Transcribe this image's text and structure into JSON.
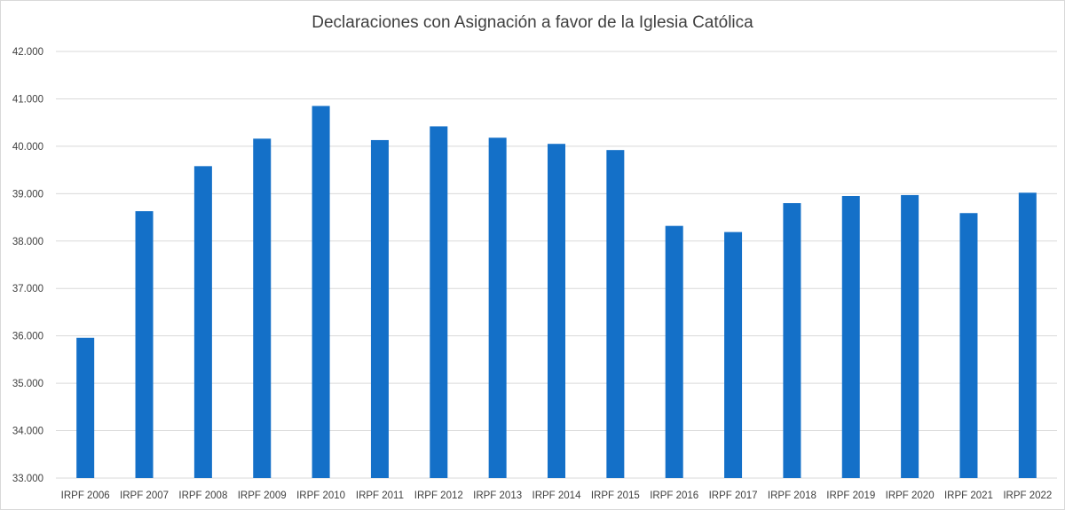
{
  "chart_data": {
    "type": "bar",
    "title": "Declaraciones con Asignación a favor de la  Iglesia Católica",
    "xlabel": "",
    "ylabel": "",
    "categories": [
      "IRPF 2006",
      "IRPF 2007",
      "IRPF 2008",
      "IRPF 2009",
      "IRPF 2010",
      "IRPF 2011",
      "IRPF 2012",
      "IRPF 2013",
      "IRPF 2014",
      "IRPF 2015",
      "IRPF 2016",
      "IRPF 2017",
      "IRPF 2018",
      "IRPF 2019",
      "IRPF 2020",
      "IRPF 2021",
      "IRPF 2022"
    ],
    "values": [
      35960,
      38630,
      39580,
      40160,
      40850,
      40130,
      40420,
      40180,
      40050,
      39920,
      38320,
      38190,
      38800,
      38950,
      38970,
      38590,
      39020
    ],
    "ylim": [
      33000,
      42000
    ],
    "yticks": [
      33000,
      34000,
      35000,
      36000,
      37000,
      38000,
      39000,
      40000,
      41000,
      42000
    ],
    "ytick_labels": [
      "33.000",
      "34.000",
      "35.000",
      "36.000",
      "37.000",
      "38.000",
      "39.000",
      "40.000",
      "41.000",
      "42.000"
    ],
    "grid": true,
    "legend": "none",
    "bar_color": "#1470c8"
  }
}
